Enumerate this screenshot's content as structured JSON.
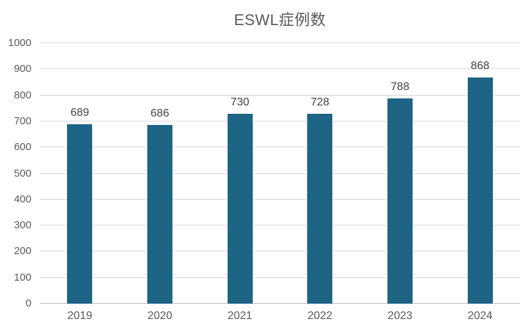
{
  "chart_data": {
    "type": "bar",
    "title": "ESWL症例数",
    "categories": [
      "2019",
      "2020",
      "2021",
      "2022",
      "2023",
      "2024"
    ],
    "values": [
      689,
      686,
      730,
      728,
      788,
      868
    ],
    "xlabel": "",
    "ylabel": "",
    "ylim": [
      0,
      1000
    ],
    "ytick_step": 100,
    "grid": true,
    "legend_position": "none",
    "bar_color": "#1E6485",
    "gridline_color": "#D9D9D9",
    "axis_line_color": "#BFBFBF",
    "title_color": "#595959",
    "value_label_color": "#404040",
    "tick_label_color": "#595959"
  }
}
